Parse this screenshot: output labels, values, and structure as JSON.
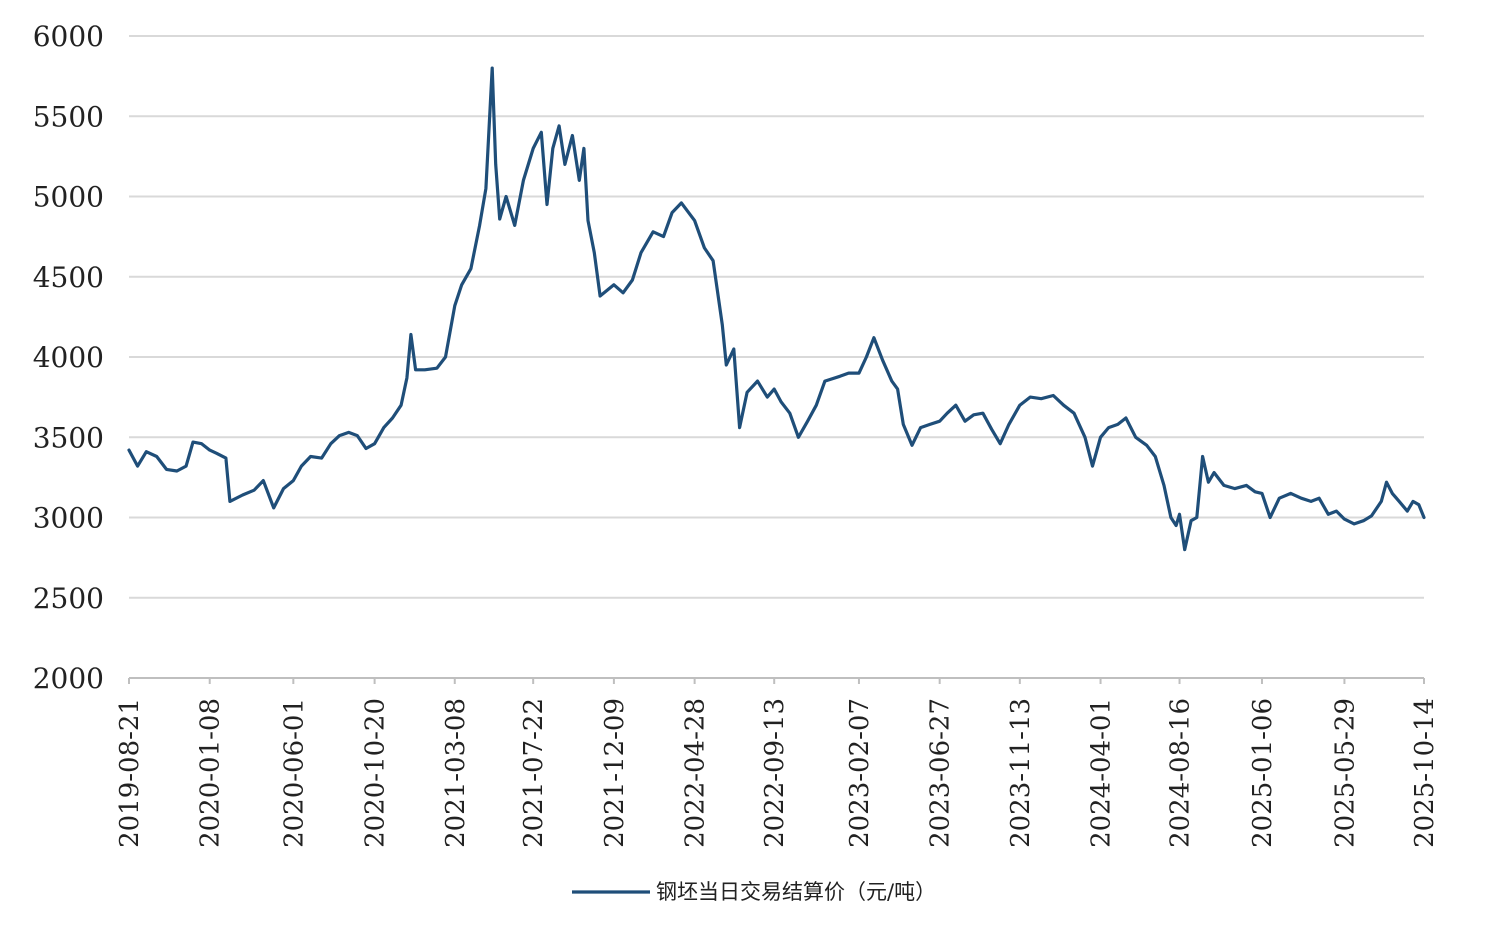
{
  "chart_data": {
    "type": "line",
    "title": "",
    "xlabel": "",
    "ylabel": "",
    "ylim": [
      2000,
      6000
    ],
    "y_ticks": [
      "6000",
      "5500",
      "5000",
      "4500",
      "4000",
      "3500",
      "3000",
      "2500",
      "2000"
    ],
    "x_ticks": [
      "2019-08-21",
      "2020-01-08",
      "2020-06-01",
      "2020-10-20",
      "2021-03-08",
      "2021-07-22",
      "2021-12-09",
      "2022-04-28",
      "2022-09-13",
      "2023-02-07",
      "2023-06-27",
      "2023-11-13",
      "2024-04-01",
      "2024-08-16",
      "2025-01-06",
      "2025-05-29",
      "2025-10-14"
    ],
    "grid": true,
    "legend_position": "bottom",
    "series": [
      {
        "name": "钢坯当日交易结算价（元/吨）",
        "color": "#1f4e79",
        "points": [
          [
            "2019-08-21",
            3420
          ],
          [
            "2019-09-05",
            3320
          ],
          [
            "2019-09-20",
            3410
          ],
          [
            "2019-10-08",
            3380
          ],
          [
            "2019-10-25",
            3300
          ],
          [
            "2019-11-12",
            3290
          ],
          [
            "2019-11-28",
            3320
          ],
          [
            "2019-12-10",
            3470
          ],
          [
            "2019-12-25",
            3460
          ],
          [
            "2020-01-08",
            3420
          ],
          [
            "2020-01-20",
            3400
          ],
          [
            "2020-02-05",
            3370
          ],
          [
            "2020-02-12",
            3100
          ],
          [
            "2020-03-05",
            3140
          ],
          [
            "2020-03-25",
            3170
          ],
          [
            "2020-04-10",
            3230
          ],
          [
            "2020-04-28",
            3060
          ],
          [
            "2020-05-15",
            3180
          ],
          [
            "2020-06-01",
            3230
          ],
          [
            "2020-06-15",
            3320
          ],
          [
            "2020-07-01",
            3380
          ],
          [
            "2020-07-20",
            3370
          ],
          [
            "2020-08-05",
            3460
          ],
          [
            "2020-08-20",
            3510
          ],
          [
            "2020-09-05",
            3530
          ],
          [
            "2020-09-20",
            3510
          ],
          [
            "2020-10-05",
            3430
          ],
          [
            "2020-10-20",
            3460
          ],
          [
            "2020-11-05",
            3560
          ],
          [
            "2020-11-20",
            3620
          ],
          [
            "2020-12-05",
            3700
          ],
          [
            "2020-12-15",
            3870
          ],
          [
            "2020-12-22",
            4140
          ],
          [
            "2020-12-30",
            3920
          ],
          [
            "2021-01-15",
            3920
          ],
          [
            "2021-02-05",
            3930
          ],
          [
            "2021-02-20",
            4000
          ],
          [
            "2021-03-08",
            4320
          ],
          [
            "2021-03-20",
            4450
          ],
          [
            "2021-04-05",
            4550
          ],
          [
            "2021-04-20",
            4820
          ],
          [
            "2021-05-01",
            5050
          ],
          [
            "2021-05-12",
            5800
          ],
          [
            "2021-05-18",
            5200
          ],
          [
            "2021-05-25",
            4860
          ],
          [
            "2021-06-05",
            5000
          ],
          [
            "2021-06-20",
            4820
          ],
          [
            "2021-07-05",
            5100
          ],
          [
            "2021-07-22",
            5300
          ],
          [
            "2021-08-05",
            5400
          ],
          [
            "2021-08-15",
            4950
          ],
          [
            "2021-08-25",
            5300
          ],
          [
            "2021-09-05",
            5440
          ],
          [
            "2021-09-15",
            5200
          ],
          [
            "2021-09-28",
            5380
          ],
          [
            "2021-10-10",
            5100
          ],
          [
            "2021-10-18",
            5300
          ],
          [
            "2021-10-25",
            4850
          ],
          [
            "2021-11-05",
            4650
          ],
          [
            "2021-11-15",
            4380
          ],
          [
            "2021-12-09",
            4450
          ],
          [
            "2021-12-25",
            4400
          ],
          [
            "2022-01-10",
            4480
          ],
          [
            "2022-01-25",
            4650
          ],
          [
            "2022-02-15",
            4780
          ],
          [
            "2022-03-05",
            4750
          ],
          [
            "2022-03-20",
            4900
          ],
          [
            "2022-04-05",
            4960
          ],
          [
            "2022-04-28",
            4850
          ],
          [
            "2022-05-15",
            4680
          ],
          [
            "2022-05-30",
            4600
          ],
          [
            "2022-06-15",
            4200
          ],
          [
            "2022-06-22",
            3950
          ],
          [
            "2022-07-05",
            4050
          ],
          [
            "2022-07-15",
            3560
          ],
          [
            "2022-07-28",
            3780
          ],
          [
            "2022-08-15",
            3850
          ],
          [
            "2022-09-01",
            3750
          ],
          [
            "2022-09-13",
            3800
          ],
          [
            "2022-09-25",
            3720
          ],
          [
            "2022-10-10",
            3650
          ],
          [
            "2022-10-25",
            3500
          ],
          [
            "2022-11-10",
            3600
          ],
          [
            "2022-11-25",
            3700
          ],
          [
            "2022-12-10",
            3850
          ],
          [
            "2023-01-05",
            3880
          ],
          [
            "2023-01-20",
            3900
          ],
          [
            "2023-02-07",
            3900
          ],
          [
            "2023-02-20",
            4000
          ],
          [
            "2023-03-05",
            4120
          ],
          [
            "2023-03-20",
            3980
          ],
          [
            "2023-04-05",
            3850
          ],
          [
            "2023-04-15",
            3800
          ],
          [
            "2023-04-25",
            3580
          ],
          [
            "2023-05-10",
            3450
          ],
          [
            "2023-05-25",
            3560
          ],
          [
            "2023-06-10",
            3580
          ],
          [
            "2023-06-27",
            3600
          ],
          [
            "2023-07-10",
            3650
          ],
          [
            "2023-07-25",
            3700
          ],
          [
            "2023-08-10",
            3600
          ],
          [
            "2023-08-25",
            3640
          ],
          [
            "2023-09-10",
            3650
          ],
          [
            "2023-09-25",
            3550
          ],
          [
            "2023-10-10",
            3460
          ],
          [
            "2023-10-25",
            3580
          ],
          [
            "2023-11-13",
            3700
          ],
          [
            "2023-12-01",
            3750
          ],
          [
            "2023-12-20",
            3740
          ],
          [
            "2024-01-10",
            3760
          ],
          [
            "2024-01-28",
            3700
          ],
          [
            "2024-02-15",
            3650
          ],
          [
            "2024-03-05",
            3500
          ],
          [
            "2024-03-18",
            3320
          ],
          [
            "2024-04-01",
            3500
          ],
          [
            "2024-04-15",
            3560
          ],
          [
            "2024-05-01",
            3580
          ],
          [
            "2024-05-15",
            3620
          ],
          [
            "2024-06-01",
            3500
          ],
          [
            "2024-06-20",
            3450
          ],
          [
            "2024-07-05",
            3380
          ],
          [
            "2024-07-20",
            3200
          ],
          [
            "2024-08-01",
            3000
          ],
          [
            "2024-08-10",
            2950
          ],
          [
            "2024-08-16",
            3020
          ],
          [
            "2024-08-25",
            2800
          ],
          [
            "2024-09-05",
            2980
          ],
          [
            "2024-09-15",
            3000
          ],
          [
            "2024-09-25",
            3380
          ],
          [
            "2024-10-05",
            3220
          ],
          [
            "2024-10-15",
            3280
          ],
          [
            "2024-11-01",
            3200
          ],
          [
            "2024-11-20",
            3180
          ],
          [
            "2024-12-10",
            3200
          ],
          [
            "2024-12-25",
            3160
          ],
          [
            "2025-01-06",
            3150
          ],
          [
            "2025-01-20",
            3000
          ],
          [
            "2025-02-05",
            3120
          ],
          [
            "2025-02-25",
            3150
          ],
          [
            "2025-03-15",
            3120
          ],
          [
            "2025-04-01",
            3100
          ],
          [
            "2025-04-15",
            3120
          ],
          [
            "2025-05-01",
            3020
          ],
          [
            "2025-05-15",
            3040
          ],
          [
            "2025-05-29",
            2990
          ],
          [
            "2025-06-15",
            2960
          ],
          [
            "2025-07-01",
            2980
          ],
          [
            "2025-07-15",
            3010
          ],
          [
            "2025-08-01",
            3100
          ],
          [
            "2025-08-10",
            3220
          ],
          [
            "2025-08-20",
            3150
          ],
          [
            "2025-09-01",
            3100
          ],
          [
            "2025-09-15",
            3040
          ],
          [
            "2025-09-25",
            3100
          ],
          [
            "2025-10-05",
            3080
          ],
          [
            "2025-10-14",
            3000
          ]
        ]
      }
    ]
  }
}
